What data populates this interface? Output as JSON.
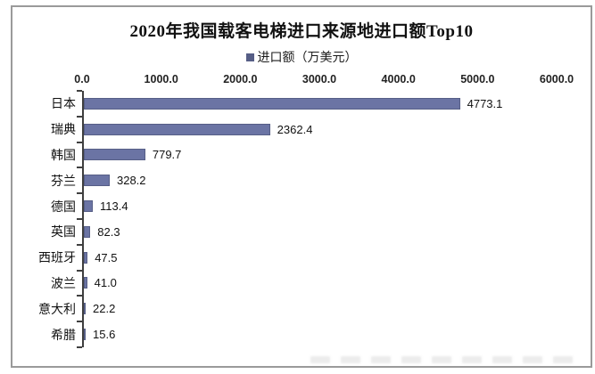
{
  "chart_data": {
    "type": "bar",
    "orientation": "horizontal",
    "title": "2020年我国载客电梯进口来源地进口额Top10",
    "legend": "进口额（万美元）",
    "legend_position": "top",
    "categories": [
      "日本",
      "瑞典",
      "韩国",
      "芬兰",
      "德国",
      "英国",
      "西班牙",
      "波兰",
      "意大利",
      "希腊"
    ],
    "values": [
      4773.1,
      2362.4,
      779.7,
      328.2,
      113.4,
      82.3,
      47.5,
      41.0,
      22.2,
      15.6
    ],
    "value_labels": [
      "4773.1",
      "2362.4",
      "779.7",
      "328.2",
      "113.4",
      "82.3",
      "47.5",
      "41.0",
      "22.2",
      "15.6"
    ],
    "x_ticks": [
      "0.0",
      "1000.0",
      "2000.0",
      "3000.0",
      "4000.0",
      "5000.0",
      "6000.0"
    ],
    "xlim": [
      0,
      6000
    ],
    "grid": "off",
    "bar_color": "#6b74a4",
    "bar_border_color": "#565e86",
    "legend_swatch_color": "#565e86",
    "axis_line_color": "#3f3f3f"
  }
}
